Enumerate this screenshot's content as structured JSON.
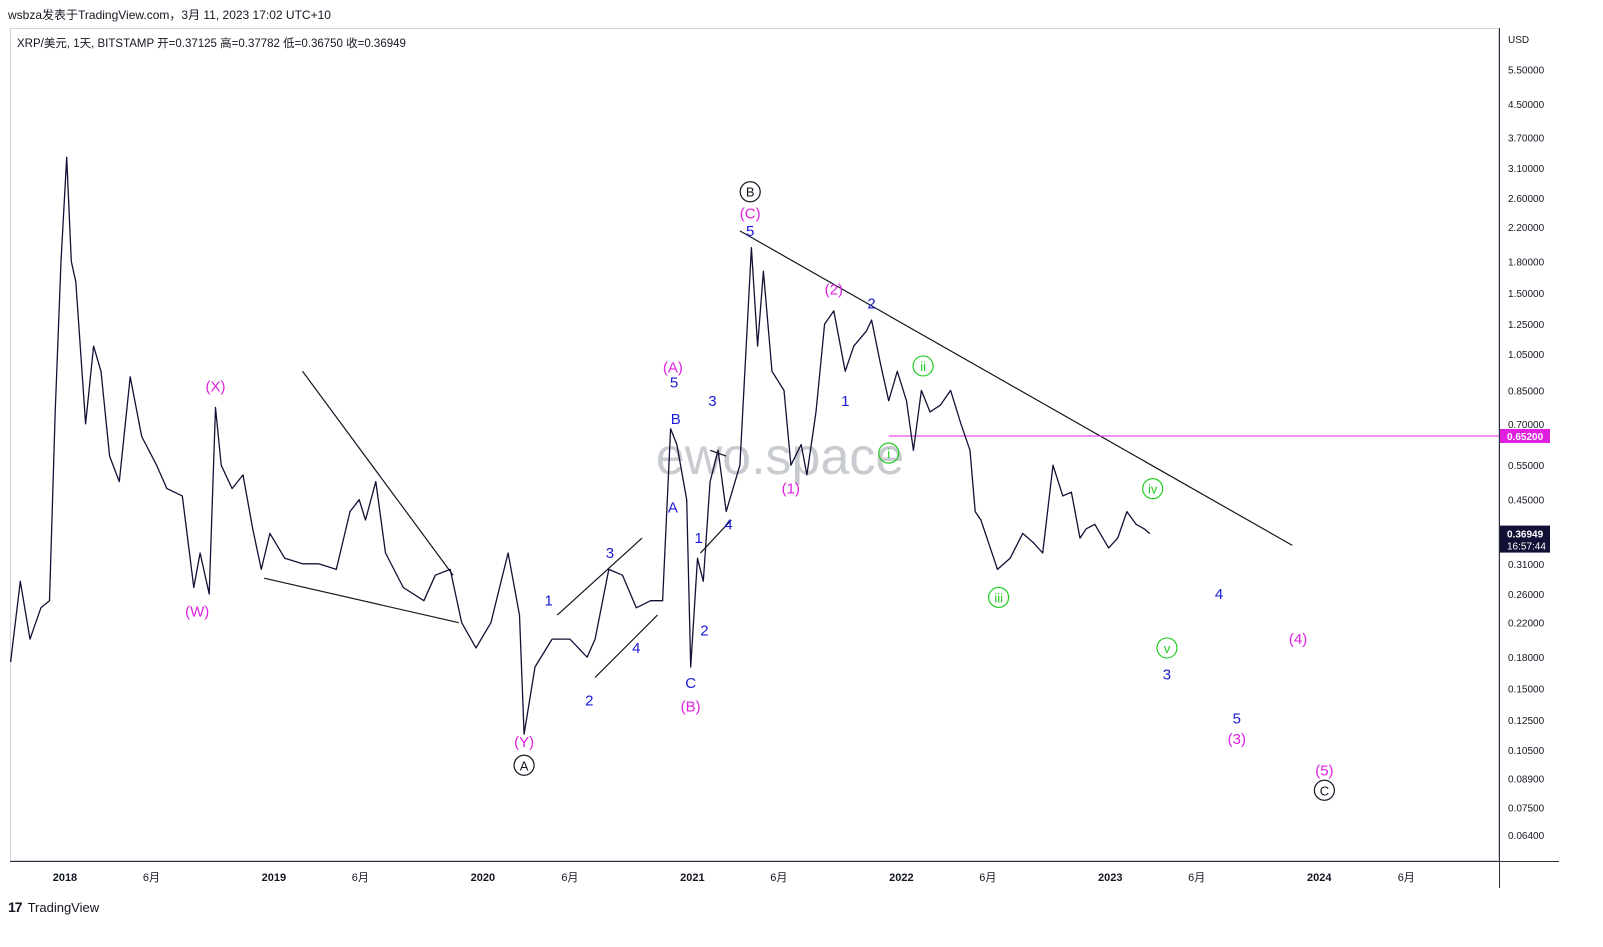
{
  "header": {
    "text": "wsbza发表于TradingView.com，3月 11, 2023 17:02 UTC+10"
  },
  "legend": {
    "symbol": "XRP/美元, 1天, BITSTAMP",
    "ohlc": "开=0.37125  高=0.37782  低=0.36750  收=0.36949"
  },
  "footer": {
    "logo": "17",
    "brand": "TradingView"
  },
  "watermark": "ewo.space",
  "chart_data": {
    "type": "line",
    "title": "XRP/美元, 1天, BITSTAMP",
    "currency": "USD",
    "y_scale": "log",
    "ylim": [
      0.055,
      7.0
    ],
    "xlim": [
      "2017-09-27",
      "2024-11-10"
    ],
    "y_ticks": [
      "5.50000",
      "4.50000",
      "3.70000",
      "3.10000",
      "2.60000",
      "2.20000",
      "1.80000",
      "1.50000",
      "1.25000",
      "1.05000",
      "0.85000",
      "0.70000",
      "0.55000",
      "0.45000",
      "0.31000",
      "0.26000",
      "0.22000",
      "0.18000",
      "0.15000",
      "0.12500",
      "0.10500",
      "0.08900",
      "0.07500",
      "0.06400"
    ],
    "x_ticks": [
      {
        "date": "2018-01-01",
        "label": "2018"
      },
      {
        "date": "2018-06-01",
        "label": "6月"
      },
      {
        "date": "2019-01-01",
        "label": "2019"
      },
      {
        "date": "2019-06-01",
        "label": "6月"
      },
      {
        "date": "2020-01-01",
        "label": "2020"
      },
      {
        "date": "2020-06-01",
        "label": "6月"
      },
      {
        "date": "2021-01-01",
        "label": "2021"
      },
      {
        "date": "2021-06-01",
        "label": "6月"
      },
      {
        "date": "2022-01-01",
        "label": "2022"
      },
      {
        "date": "2022-06-01",
        "label": "6月"
      },
      {
        "date": "2023-01-01",
        "label": "2023"
      },
      {
        "date": "2023-06-01",
        "label": "6月"
      },
      {
        "date": "2024-01-01",
        "label": "2024"
      },
      {
        "date": "2024-06-01",
        "label": "6月"
      }
    ],
    "series": [
      {
        "color": "#131035",
        "points": [
          [
            "2017-09-28",
            0.175
          ],
          [
            "2017-10-15",
            0.28
          ],
          [
            "2017-11-01",
            0.2
          ],
          [
            "2017-11-20",
            0.24
          ],
          [
            "2017-12-05",
            0.25
          ],
          [
            "2017-12-15",
            0.75
          ],
          [
            "2017-12-25",
            1.8
          ],
          [
            "2018-01-04",
            3.3
          ],
          [
            "2018-01-12",
            1.8
          ],
          [
            "2018-01-20",
            1.6
          ],
          [
            "2018-02-06",
            0.7
          ],
          [
            "2018-02-20",
            1.1
          ],
          [
            "2018-03-05",
            0.95
          ],
          [
            "2018-03-20",
            0.58
          ],
          [
            "2018-04-06",
            0.5
          ],
          [
            "2018-04-25",
            0.92
          ],
          [
            "2018-05-15",
            0.65
          ],
          [
            "2018-06-10",
            0.55
          ],
          [
            "2018-06-28",
            0.48
          ],
          [
            "2018-07-25",
            0.46
          ],
          [
            "2018-08-14",
            0.27
          ],
          [
            "2018-08-25",
            0.33
          ],
          [
            "2018-09-10",
            0.26
          ],
          [
            "2018-09-21",
            0.77
          ],
          [
            "2018-10-01",
            0.55
          ],
          [
            "2018-10-20",
            0.48
          ],
          [
            "2018-11-08",
            0.52
          ],
          [
            "2018-11-25",
            0.38
          ],
          [
            "2018-12-10",
            0.3
          ],
          [
            "2018-12-25",
            0.37
          ],
          [
            "2019-01-20",
            0.32
          ],
          [
            "2019-02-20",
            0.31
          ],
          [
            "2019-03-20",
            0.31
          ],
          [
            "2019-04-20",
            0.3
          ],
          [
            "2019-05-14",
            0.42
          ],
          [
            "2019-05-30",
            0.45
          ],
          [
            "2019-06-10",
            0.4
          ],
          [
            "2019-06-28",
            0.5
          ],
          [
            "2019-07-15",
            0.33
          ],
          [
            "2019-08-15",
            0.27
          ],
          [
            "2019-09-20",
            0.25
          ],
          [
            "2019-10-10",
            0.29
          ],
          [
            "2019-11-05",
            0.3
          ],
          [
            "2019-11-25",
            0.22
          ],
          [
            "2019-12-20",
            0.19
          ],
          [
            "2020-01-15",
            0.22
          ],
          [
            "2020-02-14",
            0.33
          ],
          [
            "2020-03-05",
            0.23
          ],
          [
            "2020-03-13",
            0.115
          ],
          [
            "2020-04-01",
            0.17
          ],
          [
            "2020-05-01",
            0.2
          ],
          [
            "2020-06-01",
            0.2
          ],
          [
            "2020-07-01",
            0.18
          ],
          [
            "2020-07-15",
            0.2
          ],
          [
            "2020-08-08",
            0.3
          ],
          [
            "2020-09-01",
            0.29
          ],
          [
            "2020-09-25",
            0.24
          ],
          [
            "2020-10-20",
            0.25
          ],
          [
            "2020-11-10",
            0.25
          ],
          [
            "2020-11-24",
            0.68
          ],
          [
            "2020-12-05",
            0.62
          ],
          [
            "2020-12-22",
            0.45
          ],
          [
            "2020-12-29",
            0.17
          ],
          [
            "2021-01-10",
            0.32
          ],
          [
            "2021-01-20",
            0.28
          ],
          [
            "2021-02-01",
            0.5
          ],
          [
            "2021-02-15",
            0.6
          ],
          [
            "2021-03-01",
            0.42
          ],
          [
            "2021-03-25",
            0.55
          ],
          [
            "2021-04-05",
            1.1
          ],
          [
            "2021-04-14",
            1.95
          ],
          [
            "2021-04-25",
            1.1
          ],
          [
            "2021-05-05",
            1.7
          ],
          [
            "2021-05-20",
            0.95
          ],
          [
            "2021-06-10",
            0.85
          ],
          [
            "2021-06-22",
            0.55
          ],
          [
            "2021-07-10",
            0.62
          ],
          [
            "2021-07-20",
            0.52
          ],
          [
            "2021-08-05",
            0.75
          ],
          [
            "2021-08-20",
            1.25
          ],
          [
            "2021-09-05",
            1.35
          ],
          [
            "2021-09-25",
            0.95
          ],
          [
            "2021-10-10",
            1.1
          ],
          [
            "2021-11-01",
            1.2
          ],
          [
            "2021-11-10",
            1.28
          ],
          [
            "2021-11-25",
            1.0
          ],
          [
            "2021-12-10",
            0.8
          ],
          [
            "2021-12-25",
            0.95
          ],
          [
            "2022-01-10",
            0.8
          ],
          [
            "2022-01-22",
            0.6
          ],
          [
            "2022-02-05",
            0.85
          ],
          [
            "2022-02-20",
            0.75
          ],
          [
            "2022-03-10",
            0.78
          ],
          [
            "2022-03-28",
            0.85
          ],
          [
            "2022-04-15",
            0.7
          ],
          [
            "2022-05-01",
            0.6
          ],
          [
            "2022-05-10",
            0.42
          ],
          [
            "2022-05-20",
            0.4
          ],
          [
            "2022-06-18",
            0.3
          ],
          [
            "2022-07-10",
            0.32
          ],
          [
            "2022-08-01",
            0.37
          ],
          [
            "2022-08-20",
            0.35
          ],
          [
            "2022-09-05",
            0.33
          ],
          [
            "2022-09-23",
            0.55
          ],
          [
            "2022-10-10",
            0.46
          ],
          [
            "2022-10-25",
            0.47
          ],
          [
            "2022-11-09",
            0.36
          ],
          [
            "2022-11-20",
            0.38
          ],
          [
            "2022-12-05",
            0.39
          ],
          [
            "2022-12-29",
            0.34
          ],
          [
            "2023-01-14",
            0.36
          ],
          [
            "2023-01-30",
            0.42
          ],
          [
            "2023-02-15",
            0.39
          ],
          [
            "2023-03-01",
            0.38
          ],
          [
            "2023-03-11",
            0.36949
          ]
        ]
      }
    ],
    "current_price": {
      "value": 0.36949,
      "label": "0.36949",
      "countdown": "16:57:44"
    },
    "horizontal_line": {
      "value": 0.652,
      "label": "0.65200",
      "color": "#e020e0"
    },
    "trendlines": [
      {
        "from": [
          "2018-12-15",
          0.285
        ],
        "to": [
          "2019-11-20",
          0.22
        ]
      },
      {
        "from": [
          "2019-02-20",
          0.95
        ],
        "to": [
          "2019-11-10",
          0.29
        ]
      },
      {
        "from": [
          "2020-05-10",
          0.23
        ],
        "to": [
          "2020-10-05",
          0.36
        ]
      },
      {
        "from": [
          "2020-07-15",
          0.16
        ],
        "to": [
          "2020-11-01",
          0.23
        ]
      },
      {
        "from": [
          "2021-01-15",
          0.33
        ],
        "to": [
          "2021-03-10",
          0.4
        ]
      },
      {
        "from": [
          "2021-02-01",
          0.6
        ],
        "to": [
          "2021-03-01",
          0.58
        ]
      },
      {
        "from": [
          "2021-03-25",
          2.15
        ],
        "to": [
          "2023-11-15",
          0.345
        ]
      }
    ],
    "annotations": [
      {
        "text": "(W)",
        "date": "2018-08-20",
        "price": 0.235,
        "color": "#e020e0"
      },
      {
        "text": "(X)",
        "date": "2018-09-21",
        "price": 0.87,
        "color": "#e020e0"
      },
      {
        "text": "(Y)",
        "date": "2020-03-13",
        "price": 0.11,
        "color": "#e020e0"
      },
      {
        "text": "A",
        "date": "2020-03-13",
        "price": 0.096,
        "color": "#131722",
        "circled": true
      },
      {
        "text": "1",
        "date": "2020-04-25",
        "price": 0.25,
        "color": "#1a1ad6"
      },
      {
        "text": "2",
        "date": "2020-07-05",
        "price": 0.14,
        "color": "#1a1ad6"
      },
      {
        "text": "3",
        "date": "2020-08-10",
        "price": 0.33,
        "color": "#1a1ad6"
      },
      {
        "text": "4",
        "date": "2020-09-25",
        "price": 0.19,
        "color": "#1a1ad6"
      },
      {
        "text": "(A)",
        "date": "2020-11-28",
        "price": 0.97,
        "color": "#e020e0"
      },
      {
        "text": "5",
        "date": "2020-11-30",
        "price": 0.89,
        "color": "#1a1ad6"
      },
      {
        "text": "B",
        "date": "2020-12-03",
        "price": 0.72,
        "color": "#1a1ad6"
      },
      {
        "text": "A",
        "date": "2020-11-28",
        "price": 0.43,
        "color": "#1a1ad6"
      },
      {
        "text": "C",
        "date": "2020-12-29",
        "price": 0.155,
        "color": "#1a1ad6"
      },
      {
        "text": "(B)",
        "date": "2020-12-29",
        "price": 0.135,
        "color": "#e020e0"
      },
      {
        "text": "1",
        "date": "2021-01-12",
        "price": 0.36,
        "color": "#1a1ad6"
      },
      {
        "text": "2",
        "date": "2021-01-22",
        "price": 0.21,
        "color": "#1a1ad6"
      },
      {
        "text": "3",
        "date": "2021-02-05",
        "price": 0.8,
        "color": "#1a1ad6"
      },
      {
        "text": "4",
        "date": "2021-03-05",
        "price": 0.39,
        "color": "#1a1ad6"
      },
      {
        "text": "5",
        "date": "2021-04-12",
        "price": 2.15,
        "color": "#1a1ad6"
      },
      {
        "text": "(C)",
        "date": "2021-04-12",
        "price": 2.38,
        "color": "#e020e0"
      },
      {
        "text": "B",
        "date": "2021-04-12",
        "price": 2.7,
        "color": "#131722",
        "circled": true
      },
      {
        "text": "(1)",
        "date": "2021-06-22",
        "price": 0.48,
        "color": "#e020e0"
      },
      {
        "text": "1",
        "date": "2021-09-25",
        "price": 0.8,
        "color": "#1a1ad6"
      },
      {
        "text": "(2)",
        "date": "2021-09-05",
        "price": 1.53,
        "color": "#e020e0"
      },
      {
        "text": "2",
        "date": "2021-11-10",
        "price": 1.41,
        "color": "#1a1ad6"
      },
      {
        "text": "i",
        "date": "2021-12-10",
        "price": 0.59,
        "color": "#22cc22",
        "circled": true
      },
      {
        "text": "ii",
        "date": "2022-02-08",
        "price": 0.98,
        "color": "#22cc22",
        "circled": true
      },
      {
        "text": "iii",
        "date": "2022-06-20",
        "price": 0.255,
        "color": "#22cc22",
        "circled": true
      },
      {
        "text": "iv",
        "date": "2023-03-16",
        "price": 0.48,
        "color": "#22cc22",
        "circled": true
      },
      {
        "text": "v",
        "date": "2023-04-10",
        "price": 0.19,
        "color": "#22cc22",
        "circled": true
      },
      {
        "text": "3",
        "date": "2023-04-10",
        "price": 0.163,
        "color": "#1a1ad6"
      },
      {
        "text": "4",
        "date": "2023-07-10",
        "price": 0.26,
        "color": "#1a1ad6"
      },
      {
        "text": "(4)",
        "date": "2023-11-25",
        "price": 0.2,
        "color": "#e020e0"
      },
      {
        "text": "5",
        "date": "2023-08-10",
        "price": 0.126,
        "color": "#1a1ad6"
      },
      {
        "text": "(3)",
        "date": "2023-08-10",
        "price": 0.112,
        "color": "#e020e0"
      },
      {
        "text": "(5)",
        "date": "2024-01-10",
        "price": 0.093,
        "color": "#e020e0"
      },
      {
        "text": "C",
        "date": "2024-01-10",
        "price": 0.083,
        "color": "#131722",
        "circled": true
      }
    ]
  }
}
